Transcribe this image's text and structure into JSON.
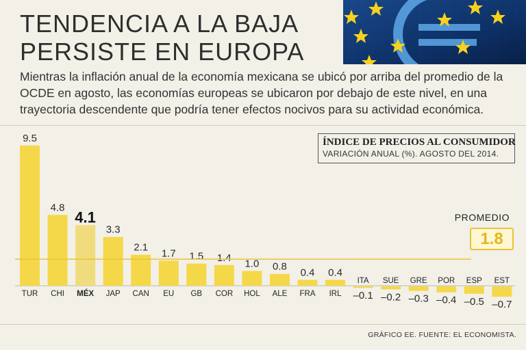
{
  "header": {
    "title_line1": "TENDENCIA A LA BAJA",
    "title_line2": "PERSISTE EN EUROPA",
    "subtitle": "Mientras la inflación anual de la economía mexicana se ubicó por arriba del promedio de la OCDE en agosto, las economías europeas se ubicaron por debajo de este nivel, en una trayectoria descendente que podría tener efectos nocivos para su actividad económica."
  },
  "legend": {
    "title": "ÍNDICE DE PRECIOS AL CONSUMIDOR",
    "subtitle": "VARIACIÓN ANUAL (%). AGOSTO DEL 2014."
  },
  "average": {
    "label": "PROMEDIO",
    "value_text": "1.8"
  },
  "source": "GRÁFICO EE. FUENTE: EL ECONOMISTA.",
  "colors": {
    "bar": "#f4d84a",
    "highlight_bar": "#f0dc7c",
    "average_line": "#e8c338",
    "background": "#f3f0e8"
  },
  "chart_data": {
    "type": "bar",
    "title": "ÍNDICE DE PRECIOS AL CONSUMIDOR",
    "subtitle": "VARIACIÓN ANUAL (%). AGOSTO DEL 2014.",
    "categories": [
      "TUR",
      "CHI",
      "MÉX",
      "JAP",
      "CAN",
      "EU",
      "GB",
      "COR",
      "HOL",
      "ALE",
      "FRA",
      "IRL",
      "ITA",
      "SUE",
      "GRE",
      "POR",
      "ESP",
      "EST"
    ],
    "values": [
      9.5,
      4.8,
      4.1,
      3.3,
      2.1,
      1.7,
      1.5,
      1.4,
      1.0,
      0.8,
      0.4,
      0.4,
      -0.1,
      -0.2,
      -0.3,
      -0.4,
      -0.5,
      -0.7
    ],
    "value_labels": [
      "9.5",
      "4.8",
      "4.1",
      "3.3",
      "2.1",
      "1.7",
      "1.5",
      "1.4",
      "1.0",
      "0.8",
      "0.4",
      "0.4",
      "–0.1",
      "–0.2",
      "–0.3",
      "–0.4",
      "–0.5",
      "–0.7"
    ],
    "highlight": "MÉX",
    "reference_line": {
      "label": "PROMEDIO",
      "value": 1.8
    },
    "xlabel": "",
    "ylabel": "",
    "ylim": [
      -0.7,
      9.5
    ]
  }
}
